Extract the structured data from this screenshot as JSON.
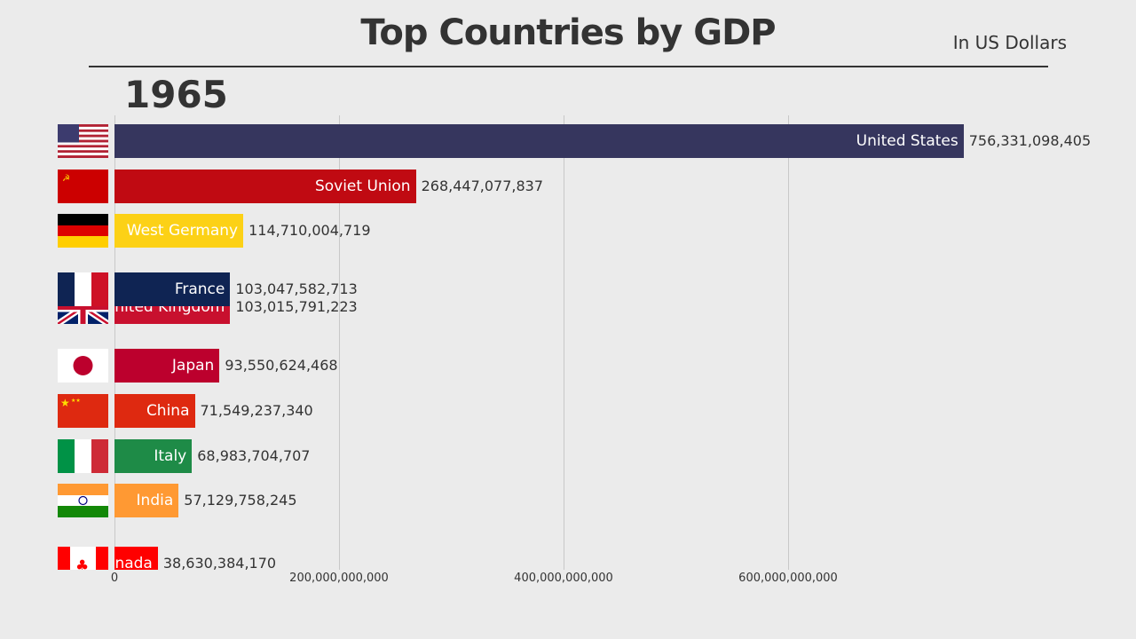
{
  "chart_data": {
    "type": "bar",
    "title": "Top Countries by GDP",
    "subtitle": "In US Dollars",
    "year": "1965",
    "xlim": [
      0,
      900000000000
    ],
    "xticks": [
      0,
      200000000000,
      400000000000,
      600000000000
    ],
    "xtick_labels": [
      "0",
      "200,000,000,000",
      "400,000,000,000",
      "600,000,000,000"
    ],
    "grid": true,
    "bars": [
      {
        "name": "United States",
        "value": 756331098405,
        "label": "756,331,098,405",
        "color": "#36365e",
        "flag": "us"
      },
      {
        "name": "Soviet Union",
        "value": 268447077837,
        "label": "268,447,077,837",
        "color": "#c00a12",
        "flag": "su"
      },
      {
        "name": "West Germany",
        "value": 114710004719,
        "label": "114,710,004,719",
        "color": "#fcd116",
        "flag": "de"
      },
      {
        "name": "United Kingdom",
        "value": 103015791223,
        "label": "103,015,791,223",
        "color": "#c8102e",
        "flag": "gb"
      },
      {
        "name": "France",
        "value": 103047582713,
        "label": "103,047,582,713",
        "color": "#0f2453",
        "flag": "fr"
      },
      {
        "name": "Japan",
        "value": 93550624468,
        "label": "93,550,624,468",
        "color": "#bc002d",
        "flag": "jp"
      },
      {
        "name": "China",
        "value": 71549237340,
        "label": "71,549,237,340",
        "color": "#de2910",
        "flag": "cn"
      },
      {
        "name": "Italy",
        "value": 68983704707,
        "label": "68,983,704,707",
        "color": "#1e8b47",
        "flag": "it"
      },
      {
        "name": "India",
        "value": 57129758245,
        "label": "57,129,758,245",
        "color": "#ff9933",
        "flag": "in"
      },
      {
        "name": "Canada",
        "value": 38630384170,
        "label": "38,630,384,170",
        "color": "#ff0000",
        "flag": "ca"
      }
    ]
  }
}
